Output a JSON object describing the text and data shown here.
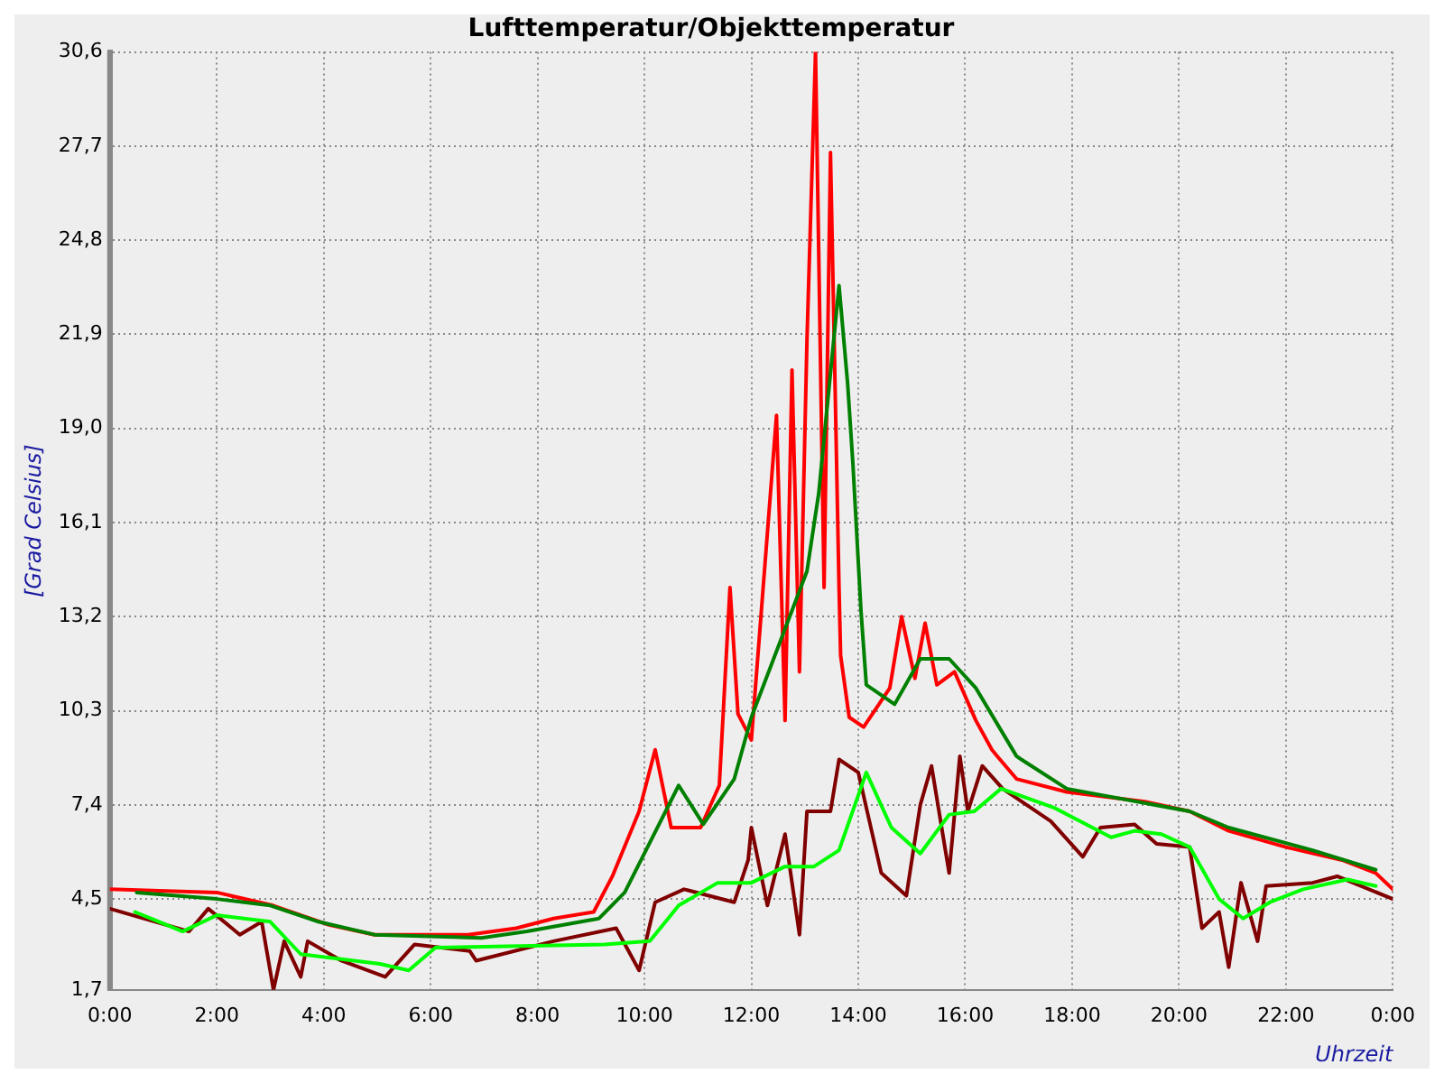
{
  "chart_data": {
    "type": "line",
    "title": "Lufttemperatur/Objekttemperatur",
    "xlabel": "Uhrzeit",
    "ylabel": "[Grad Celsius]",
    "xlim": [
      0,
      24
    ],
    "xticks": [
      {
        "value": 0,
        "label": "0:00"
      },
      {
        "value": 2,
        "label": "2:00"
      },
      {
        "value": 4,
        "label": "4:00"
      },
      {
        "value": 6,
        "label": "6:00"
      },
      {
        "value": 8,
        "label": "8:00"
      },
      {
        "value": 10,
        "label": "10:00"
      },
      {
        "value": 12,
        "label": "12:00"
      },
      {
        "value": 14,
        "label": "14:00"
      },
      {
        "value": 16,
        "label": "16:00"
      },
      {
        "value": 18,
        "label": "18:00"
      },
      {
        "value": 20,
        "label": "20:00"
      },
      {
        "value": 22,
        "label": "22:00"
      },
      {
        "value": 24,
        "label": "0:00"
      }
    ],
    "ylim": [
      1.7,
      30.6
    ],
    "yticks": [
      {
        "value": 1.7,
        "label": "1,7"
      },
      {
        "value": 4.5,
        "label": "4,5"
      },
      {
        "value": 7.4,
        "label": "7,4"
      },
      {
        "value": 10.3,
        "label": "10,3"
      },
      {
        "value": 13.2,
        "label": "13,2"
      },
      {
        "value": 16.1,
        "label": "16,1"
      },
      {
        "value": 19,
        "label": "19,0"
      },
      {
        "value": 21.9,
        "label": "21,9"
      },
      {
        "value": 24.8,
        "label": "24,8"
      },
      {
        "value": 27.7,
        "label": "27,7"
      },
      {
        "value": 30.6,
        "label": "30,6"
      }
    ],
    "grid": true,
    "marker": "none",
    "line_style": "solid",
    "series": [
      {
        "color": "#ff0000",
        "x": [
          0,
          2,
          3.05,
          4.1,
          4.95,
          6.7,
          7.6,
          8.3,
          9.05,
          9.4,
          9.9,
          10.2,
          10.5,
          11.05,
          11.4,
          11.6,
          11.75,
          12,
          12.47,
          12.63,
          12.76,
          12.9,
          13.04,
          13.2,
          13.36,
          13.48,
          13.64,
          13.67,
          13.83,
          14.1,
          14.59,
          14.81,
          15.06,
          15.25,
          15.47,
          15.8,
          16.2,
          16.5,
          16.6,
          16.96,
          17.9,
          19.36,
          20.2,
          20.93,
          22,
          23.05,
          23.68,
          24
        ],
        "values": [
          4.8,
          4.7,
          4.3,
          3.7,
          3.4,
          3.4,
          3.6,
          3.9,
          4.1,
          5.2,
          7.2,
          9.1,
          6.7,
          6.7,
          8,
          14.1,
          10.2,
          9.4,
          19.4,
          10,
          20.8,
          11.5,
          21.7,
          30.6,
          14.1,
          27.5,
          14.1,
          12,
          10.1,
          9.8,
          11,
          13.2,
          11.3,
          13,
          11.1,
          11.5,
          10,
          9.1,
          8.9,
          8.2,
          7.8,
          7.5,
          7.2,
          6.6,
          6.1,
          5.7,
          5.3,
          4.8
        ]
      },
      {
        "color": "#008000",
        "x": [
          0.5,
          2,
          3,
          3.9,
          4.95,
          6.95,
          7.8,
          9.15,
          9.63,
          10.64,
          11.1,
          11.68,
          12,
          13.04,
          13.26,
          13.64,
          13.8,
          13.9,
          14.05,
          14.15,
          14.68,
          15.16,
          15.7,
          16.2,
          16.96,
          17.05,
          17.9,
          20.2,
          20.93,
          22.5,
          23.68
        ],
        "values": [
          4.7,
          4.5,
          4.3,
          3.8,
          3.4,
          3.3,
          3.5,
          3.9,
          4.7,
          8,
          6.8,
          8.2,
          10.1,
          14.6,
          17,
          23.4,
          20.4,
          17.9,
          13.4,
          11.1,
          10.5,
          11.9,
          11.9,
          11,
          8.9,
          8.8,
          7.9,
          7.2,
          6.7,
          6,
          5.4
        ]
      },
      {
        "color": "#800000",
        "x": [
          0,
          1.48,
          1.84,
          2.43,
          2.84,
          3.06,
          3.26,
          3.57,
          3.7,
          4.33,
          5.15,
          5.7,
          6.73,
          6.85,
          8.3,
          9.47,
          9.9,
          10.2,
          10.74,
          11.68,
          11.94,
          12,
          12.3,
          12.63,
          12.9,
          13.04,
          13.48,
          13.64,
          14,
          14.43,
          14.9,
          15.16,
          15.37,
          15.7,
          15.9,
          16.05,
          16.32,
          16.7,
          17.6,
          18.2,
          18.53,
          19.17,
          19.58,
          20.2,
          20.43,
          20.75,
          20.93,
          21.16,
          21.47,
          21.63,
          22.5,
          22.96,
          24
        ],
        "values": [
          4.2,
          3.5,
          4.2,
          3.4,
          3.8,
          1.7,
          3.2,
          2.1,
          3.2,
          2.6,
          2.1,
          3.1,
          2.9,
          2.6,
          3.2,
          3.6,
          2.3,
          4.4,
          4.8,
          4.4,
          5.7,
          6.7,
          4.3,
          6.5,
          3.4,
          7.2,
          7.2,
          8.8,
          8.4,
          5.3,
          4.6,
          7.4,
          8.6,
          5.3,
          8.9,
          7.2,
          8.6,
          7.9,
          6.9,
          5.8,
          6.7,
          6.8,
          6.2,
          6.1,
          3.6,
          4.1,
          2.4,
          5,
          3.2,
          4.9,
          5,
          5.2,
          4.5
        ]
      },
      {
        "color": "#00ff00",
        "x": [
          0.47,
          1.36,
          2,
          3,
          3.57,
          5.05,
          5.59,
          6.09,
          9.25,
          10.1,
          10.64,
          11.37,
          12,
          12.63,
          13.17,
          13.64,
          14.15,
          14.62,
          15.16,
          15.7,
          16.17,
          16.67,
          17.68,
          18.73,
          19.17,
          19.67,
          20.2,
          20.75,
          21.2,
          21.7,
          22.32,
          23.15,
          23.68
        ],
        "values": [
          4.1,
          3.5,
          4,
          3.8,
          2.8,
          2.5,
          2.3,
          3,
          3.1,
          3.2,
          4.3,
          5,
          5,
          5.5,
          5.5,
          6,
          8.4,
          6.7,
          5.9,
          7.1,
          7.2,
          7.9,
          7.3,
          6.4,
          6.6,
          6.5,
          6.1,
          4.5,
          3.9,
          4.4,
          4.8,
          5.1,
          4.9
        ]
      }
    ]
  }
}
